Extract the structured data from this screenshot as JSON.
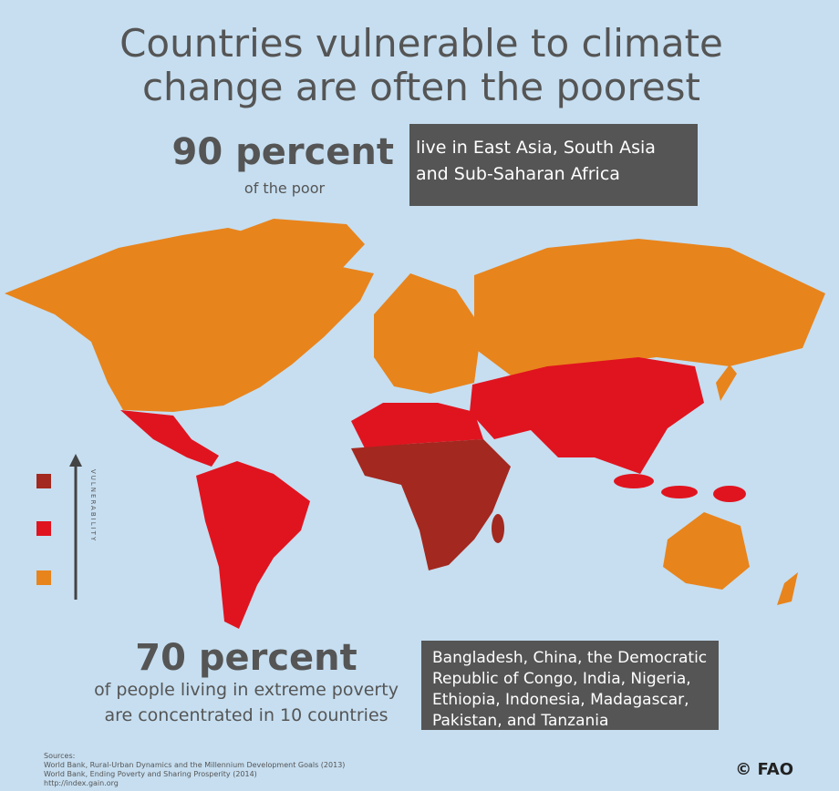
{
  "title": {
    "lines": [
      "Countries vulnerable to climate",
      "change are often the poorest"
    ]
  },
  "stat_top": {
    "figure": "90 percent",
    "caption": "of the poor",
    "box_lines": [
      "live in East Asia, South Asia",
      "and Sub-Saharan Africa"
    ]
  },
  "legend": {
    "label": "VULNERABILITY"
  },
  "stat_bottom": {
    "figure": "70 percent",
    "caption_lines": [
      "of people living in extreme poverty",
      "are concentrated in 10 countries"
    ],
    "box_lines": [
      "Bangladesh, China, the Democratic",
      "Republic of Congo, India, Nigeria,",
      "Ethiopia, Indonesia, Madagascar,",
      "Pakistan, and Tanzania"
    ]
  },
  "sources": {
    "lines": [
      "Sources:",
      "World Bank, Rural-Urban Dynamics and the Millennium Development Goals (2013)",
      "World Bank, Ending Poverty and Sharing Prosperity (2014)",
      "http://index.gain.org"
    ]
  },
  "credit": "© FAO"
}
